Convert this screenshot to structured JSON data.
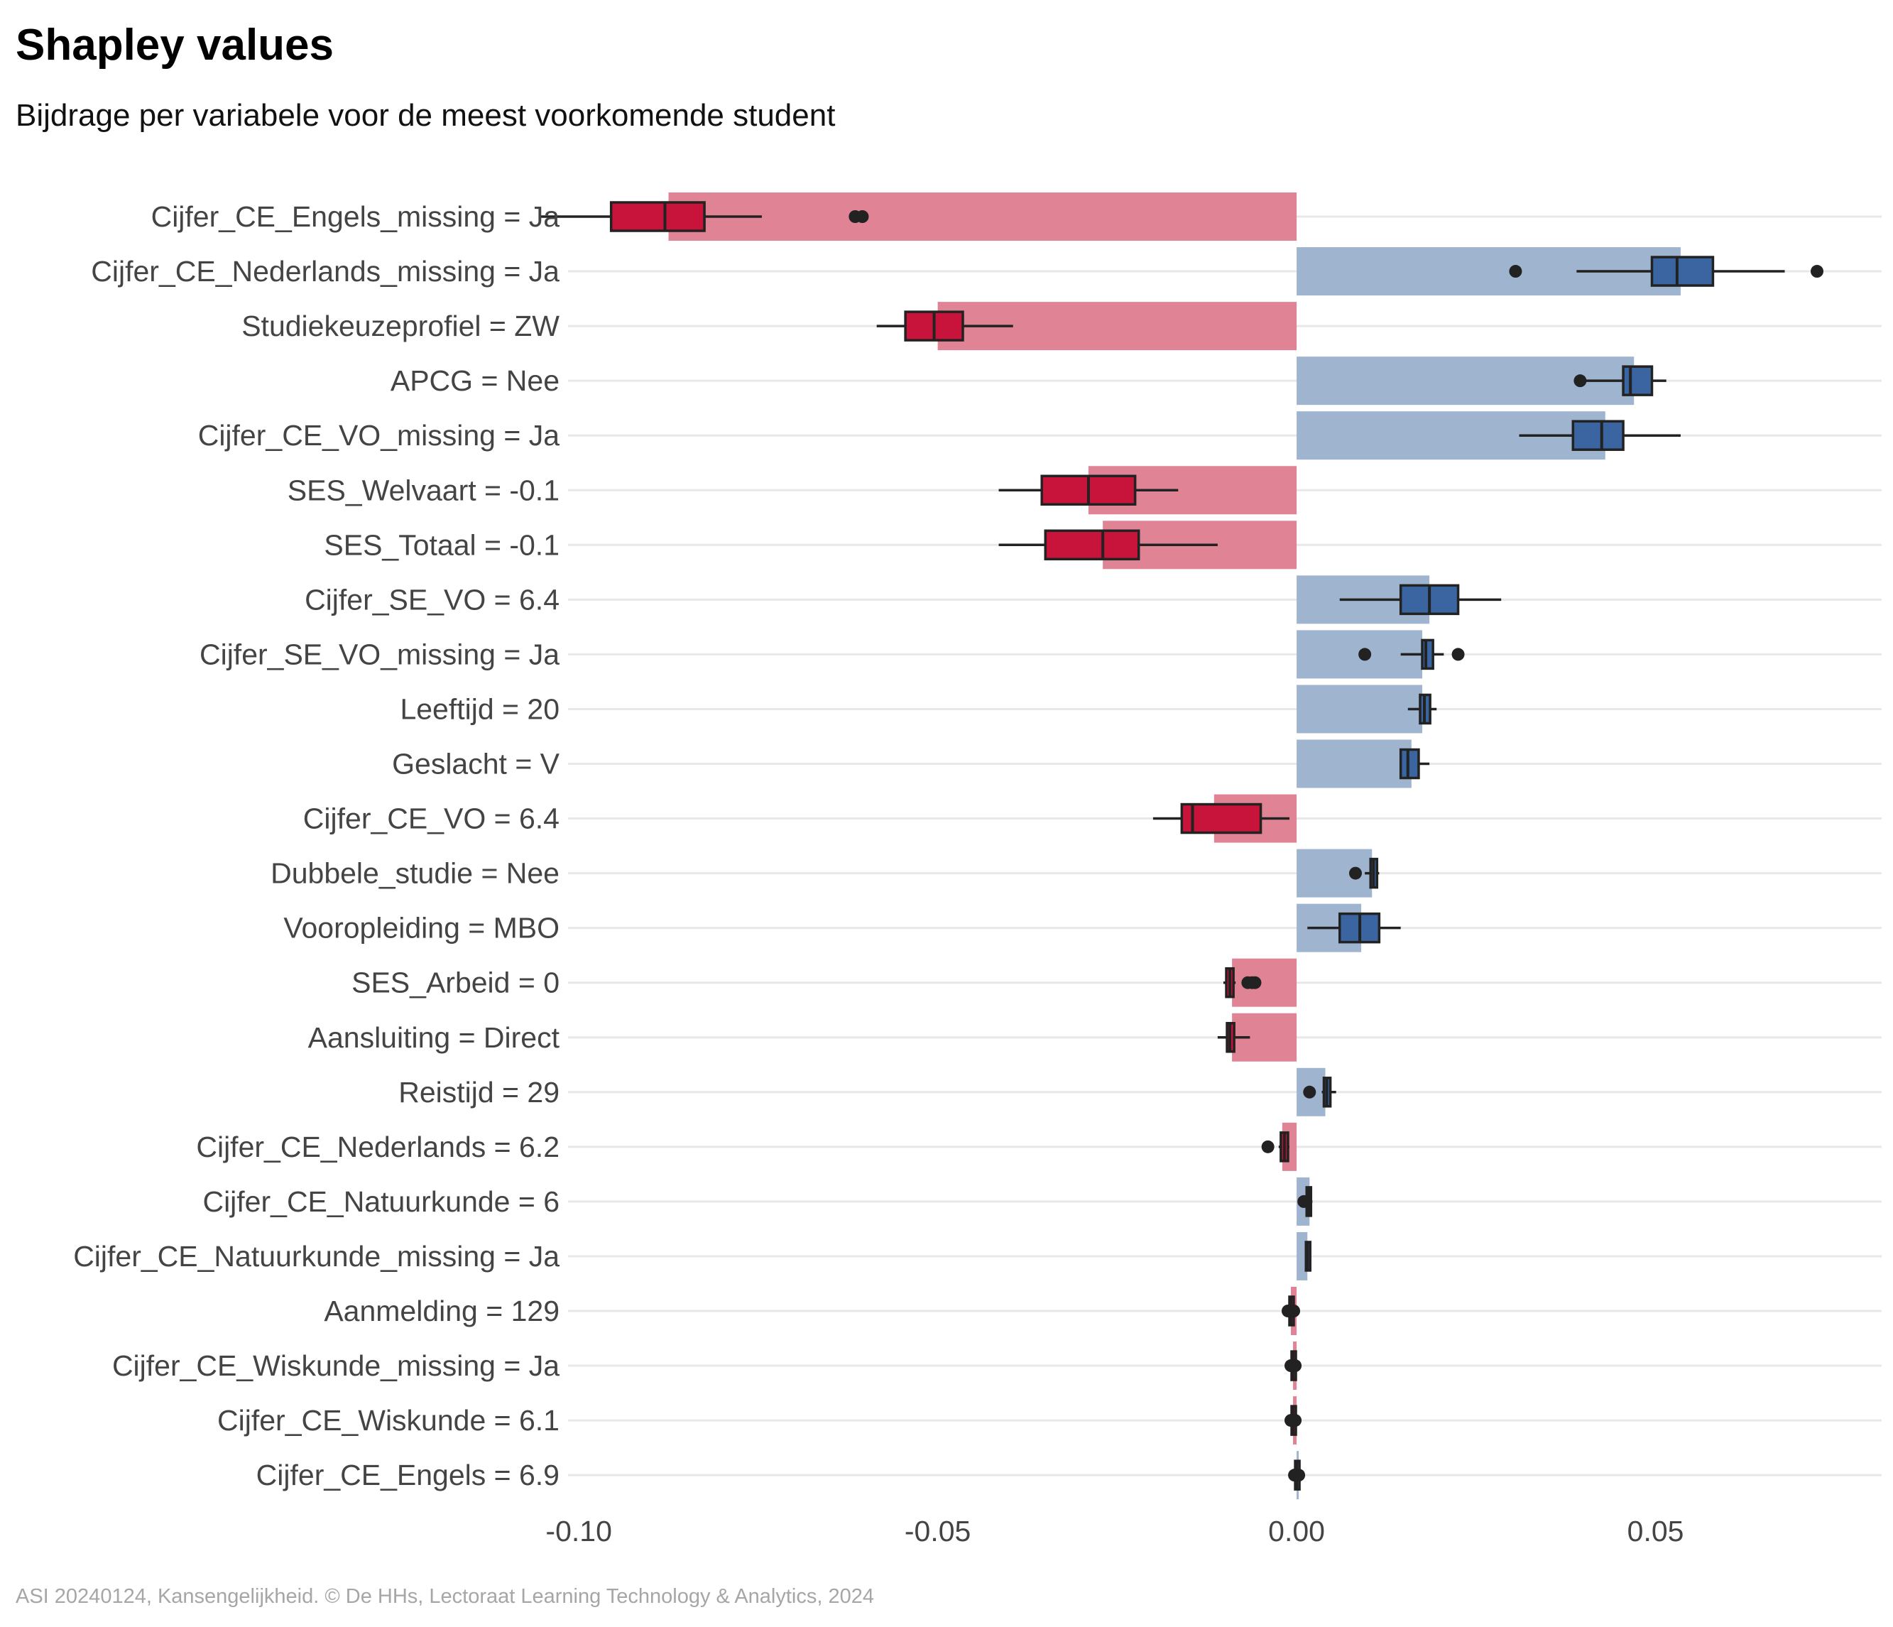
{
  "title": "Shapley values",
  "subtitle": "Bijdrage per variabele voor de meest voorkomende student",
  "caption": "ASI 20240124, Kansengelijkheid. © De HHs, Lectoraat Learning Technology & Analytics, 2024",
  "colors": {
    "negative_bar": "#e08495",
    "positive_bar": "#9fb4cf",
    "negative_box": "#c8143a",
    "positive_box": "#3a65a0",
    "box_line": "#222222",
    "grid": "#e8e8e8"
  },
  "chart_data": {
    "type": "bar+boxplot",
    "orientation": "horizontal",
    "xlim": [
      -0.1015,
      0.0815
    ],
    "x_ticks": [
      -0.1,
      -0.05,
      0.0,
      0.05
    ],
    "x_tick_labels": [
      "-0.10",
      "-0.05",
      "0.00",
      "0.05"
    ],
    "xlabel": "",
    "ylabel": "",
    "categories": [
      {
        "label": "Cijfer_CE_Engels_missing = Ja",
        "value": -0.0875,
        "box": {
          "min": -0.1055,
          "q1": -0.0955,
          "median": -0.088,
          "q3": -0.0825,
          "max": -0.0745
        },
        "outliers": [
          -0.0615,
          -0.0605
        ]
      },
      {
        "label": "Cijfer_CE_Nederlands_missing = Ja",
        "value": 0.0535,
        "box": {
          "min": 0.039,
          "q1": 0.0495,
          "median": 0.053,
          "q3": 0.058,
          "max": 0.068
        },
        "outliers": [
          0.0305,
          0.0725
        ]
      },
      {
        "label": "Studiekeuzeprofiel = ZW",
        "value": -0.05,
        "box": {
          "min": -0.0585,
          "q1": -0.0545,
          "median": -0.0505,
          "q3": -0.0465,
          "max": -0.0395
        },
        "outliers": []
      },
      {
        "label": "APCG = Nee",
        "value": 0.047,
        "box": {
          "min": 0.0395,
          "q1": 0.0455,
          "median": 0.0465,
          "q3": 0.0495,
          "max": 0.0515
        },
        "outliers": [
          0.0395
        ]
      },
      {
        "label": "Cijfer_CE_VO_missing = Ja",
        "value": 0.043,
        "box": {
          "min": 0.031,
          "q1": 0.0385,
          "median": 0.0425,
          "q3": 0.0455,
          "max": 0.0535
        },
        "outliers": []
      },
      {
        "label": "SES_Welvaart = -0.1",
        "value": -0.029,
        "box": {
          "min": -0.0415,
          "q1": -0.0355,
          "median": -0.029,
          "q3": -0.0225,
          "max": -0.0165
        },
        "outliers": []
      },
      {
        "label": "SES_Totaal = -0.1",
        "value": -0.027,
        "box": {
          "min": -0.0415,
          "q1": -0.035,
          "median": -0.027,
          "q3": -0.022,
          "max": -0.011
        },
        "outliers": []
      },
      {
        "label": "Cijfer_SE_VO = 6.4",
        "value": 0.0185,
        "box": {
          "min": 0.006,
          "q1": 0.0145,
          "median": 0.0185,
          "q3": 0.0225,
          "max": 0.0285
        },
        "outliers": []
      },
      {
        "label": "Cijfer_SE_VO_missing = Ja",
        "value": 0.0175,
        "box": {
          "min": 0.0145,
          "q1": 0.0175,
          "median": 0.018,
          "q3": 0.019,
          "max": 0.0205
        },
        "outliers": [
          0.0095,
          0.0225
        ]
      },
      {
        "label": "Leeftijd = 20",
        "value": 0.0175,
        "box": {
          "min": 0.0155,
          "q1": 0.0172,
          "median": 0.0178,
          "q3": 0.0186,
          "max": 0.0195
        },
        "outliers": []
      },
      {
        "label": "Geslacht = V",
        "value": 0.016,
        "box": {
          "min": 0.0145,
          "q1": 0.0145,
          "median": 0.0155,
          "q3": 0.017,
          "max": 0.0185
        },
        "outliers": []
      },
      {
        "label": "Cijfer_CE_VO = 6.4",
        "value": -0.0115,
        "box": {
          "min": -0.02,
          "q1": -0.016,
          "median": -0.0145,
          "q3": -0.005,
          "max": -0.001
        },
        "outliers": []
      },
      {
        "label": "Dubbele_studie = Nee",
        "value": 0.0105,
        "box": {
          "min": 0.0095,
          "q1": 0.0103,
          "median": 0.0107,
          "q3": 0.0112,
          "max": 0.0115
        },
        "outliers": [
          0.0082
        ]
      },
      {
        "label": "Vooropleiding = MBO",
        "value": 0.009,
        "box": {
          "min": 0.0015,
          "q1": 0.006,
          "median": 0.0088,
          "q3": 0.0115,
          "max": 0.0145
        },
        "outliers": []
      },
      {
        "label": "SES_Arbeid = 0",
        "value": -0.009,
        "box": {
          "min": -0.0102,
          "q1": -0.0098,
          "median": -0.0093,
          "q3": -0.0088,
          "max": -0.0085
        },
        "outliers": [
          -0.0068,
          -0.0062,
          -0.0058
        ]
      },
      {
        "label": "Aansluiting = Direct",
        "value": -0.009,
        "box": {
          "min": -0.011,
          "q1": -0.0097,
          "median": -0.0093,
          "q3": -0.0087,
          "max": -0.0065
        },
        "outliers": []
      },
      {
        "label": "Reistijd = 29",
        "value": 0.004,
        "box": {
          "min": 0.0035,
          "q1": 0.0038,
          "median": 0.0042,
          "q3": 0.0047,
          "max": 0.0055
        },
        "outliers": [
          0.0018
        ]
      },
      {
        "label": "Cijfer_CE_Nederlands = 6.2",
        "value": -0.002,
        "box": {
          "min": -0.0025,
          "q1": -0.0022,
          "median": -0.0017,
          "q3": -0.0012,
          "max": -0.001
        },
        "outliers": [
          -0.004
        ]
      },
      {
        "label": "Cijfer_CE_Natuurkunde = 6",
        "value": 0.0018,
        "box": {
          "min": 0.0008,
          "q1": 0.0014,
          "median": 0.0017,
          "q3": 0.002,
          "max": 0.0022
        },
        "outliers": [
          0.001
        ]
      },
      {
        "label": "Cijfer_CE_Natuurkunde_missing = Ja",
        "value": 0.0015,
        "box": {
          "min": 0.0013,
          "q1": 0.0013,
          "median": 0.0015,
          "q3": 0.0017,
          "max": 0.0018
        },
        "outliers": []
      },
      {
        "label": "Aanmelding = 129",
        "value": -0.0008,
        "box": {
          "min": -0.0012,
          "q1": -0.001,
          "median": -0.0008,
          "q3": -0.0006,
          "max": -0.0004
        },
        "outliers": [
          -0.0012,
          -0.0004
        ]
      },
      {
        "label": "Cijfer_CE_Wiskunde_missing = Ja",
        "value": -0.0005,
        "box": {
          "min": -0.0008,
          "q1": -0.0007,
          "median": -0.0005,
          "q3": -0.0003,
          "max": -0.0002
        },
        "outliers": [
          -0.0008,
          -0.0002
        ]
      },
      {
        "label": "Cijfer_CE_Wiskunde = 6.1",
        "value": -0.0005,
        "box": {
          "min": -0.0008,
          "q1": -0.0007,
          "median": -0.0005,
          "q3": -0.0003,
          "max": -0.0002
        },
        "outliers": [
          -0.0008,
          -0.0002
        ]
      },
      {
        "label": "Cijfer_CE_Engels = 6.9",
        "value": 0.0,
        "box": {
          "min": -0.0003,
          "q1": -0.0002,
          "median": 0.0,
          "q3": 0.0002,
          "max": 0.0003
        },
        "outliers": [
          -0.0003,
          0.0003
        ]
      }
    ]
  }
}
